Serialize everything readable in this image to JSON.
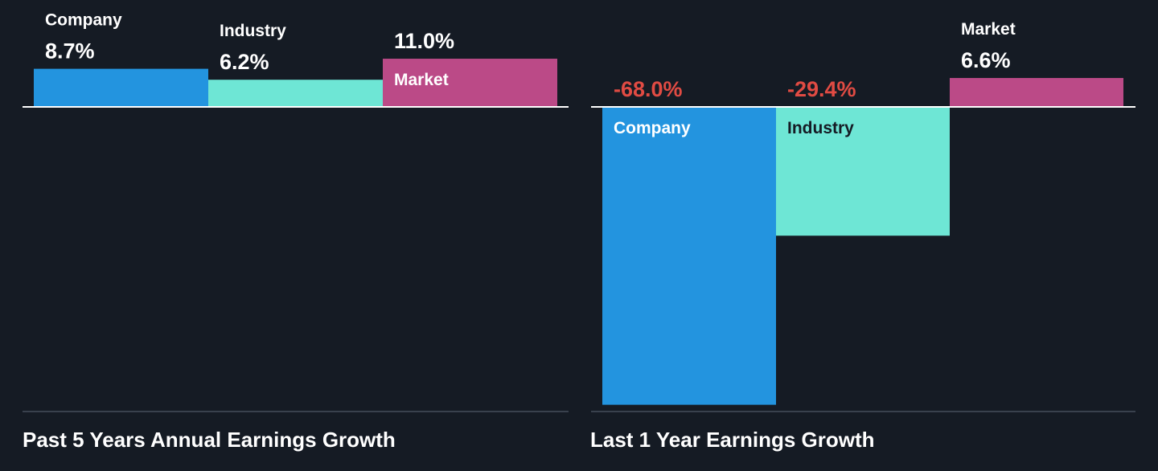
{
  "colors": {
    "background": "#151b24",
    "company": "#2394df",
    "industry": "#6ee6d5",
    "market": "#bb4a87",
    "positive_text": "#ffffff",
    "negative_text": "#e14b43",
    "axis": "#ffffff",
    "footer_line": "#39414d"
  },
  "chart_data": [
    {
      "type": "bar",
      "title": "Past 5 Years Annual Earnings Growth",
      "categories": [
        "Company",
        "Industry",
        "Market"
      ],
      "values": [
        8.7,
        6.2,
        11.0
      ],
      "value_labels": [
        "8.7%",
        "6.2%",
        "11.0%"
      ],
      "unit": "%",
      "ylim": [
        -70,
        11.5
      ],
      "grid": false,
      "legend": "none"
    },
    {
      "type": "bar",
      "title": "Last 1 Year Earnings Growth",
      "categories": [
        "Company",
        "Industry",
        "Market"
      ],
      "values": [
        -68.0,
        -29.4,
        6.6
      ],
      "value_labels": [
        "-68.0%",
        "-29.4%",
        "6.6%"
      ],
      "unit": "%",
      "ylim": [
        -70,
        11.5
      ],
      "grid": false,
      "legend": "none"
    }
  ]
}
